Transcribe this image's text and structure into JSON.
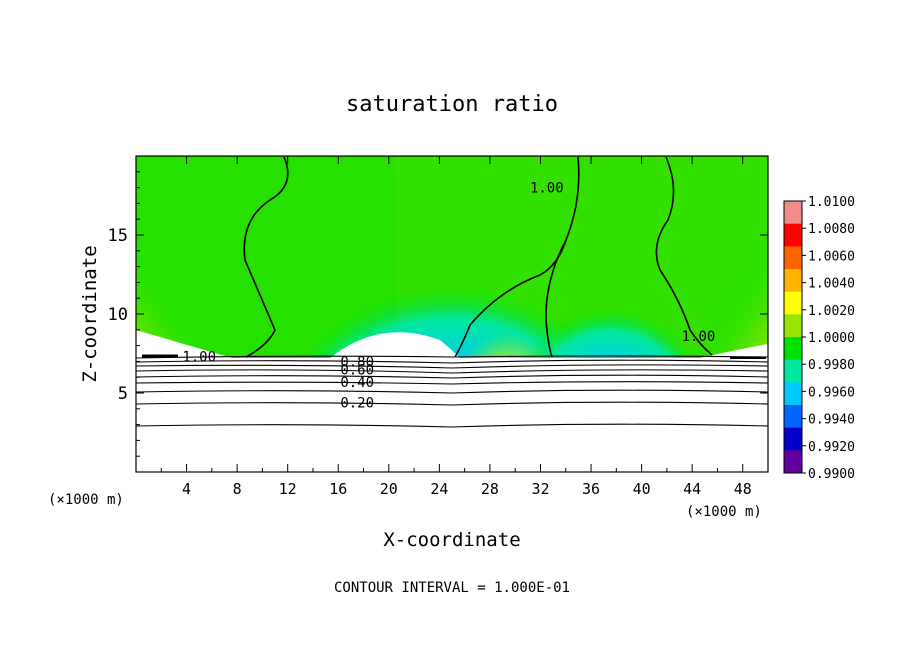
{
  "chart_data": {
    "type": "heatmap",
    "title": "saturation ratio",
    "xlabel": "X-coordinate",
    "ylabel": "Z-coordinate",
    "x_unit_left": "(×1000 m)",
    "x_unit_right": "(×1000 m)",
    "footer": "CONTOUR INTERVAL = 1.000E-01",
    "xlim": [
      0,
      50
    ],
    "ylim": [
      0,
      20
    ],
    "x_ticks": [
      4,
      8,
      12,
      16,
      20,
      24,
      28,
      32,
      36,
      40,
      44,
      48
    ],
    "y_ticks": [
      5,
      10,
      15
    ],
    "colorbar": {
      "min": 0.99,
      "max": 1.01,
      "labels": [
        "1.0100",
        "1.0080",
        "1.0060",
        "1.0040",
        "1.0020",
        "1.0000",
        "0.9980",
        "0.9960",
        "0.9940",
        "0.9920",
        "0.9900"
      ],
      "colors": [
        "#f08c8c",
        "#ff0000",
        "#ff6400",
        "#ffb400",
        "#ffff00",
        "#96e600",
        "#00e100",
        "#00e6a0",
        "#00c8ff",
        "#0064ff",
        "#0000c8",
        "#6400a0"
      ]
    },
    "contour_labels": [
      {
        "text": "1.00",
        "x": 5,
        "y": 7.3
      },
      {
        "text": "0.80",
        "x": 17.5,
        "y": 7.0
      },
      {
        "text": "0.60",
        "x": 17.5,
        "y": 6.5
      },
      {
        "text": "0.40",
        "x": 17.5,
        "y": 5.7
      },
      {
        "text": "0.20",
        "x": 17.5,
        "y": 4.4
      },
      {
        "text": "1.00",
        "x": 32.5,
        "y": 18.0
      },
      {
        "text": "1.00",
        "x": 44.5,
        "y": 8.6
      }
    ]
  }
}
